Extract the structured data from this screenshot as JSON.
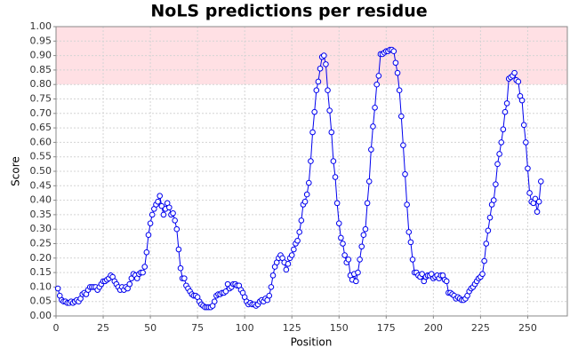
{
  "chart_data": {
    "type": "line",
    "title": "NoLS predictions per residue",
    "x_label": "Position",
    "y_label": "Score",
    "xlim": [
      0,
      271
    ],
    "ylim": [
      0,
      1
    ],
    "xticks": [
      0,
      25,
      50,
      75,
      100,
      125,
      150,
      175,
      200,
      225,
      250
    ],
    "yticks": [
      {
        "value": 0,
        "label": "0.00"
      },
      {
        "value": 0.05,
        "label": "0.05"
      },
      {
        "value": 0.1,
        "label": "0.10"
      },
      {
        "value": 0.15,
        "label": "0.15"
      },
      {
        "value": 0.2,
        "label": "0.20"
      },
      {
        "value": 0.25,
        "label": "0.25"
      },
      {
        "value": 0.3,
        "label": "0.30"
      },
      {
        "value": 0.35,
        "label": "0.35"
      },
      {
        "value": 0.4,
        "label": "0.40"
      },
      {
        "value": 0.45,
        "label": "0.45"
      },
      {
        "value": 0.5,
        "label": "0.50"
      },
      {
        "value": 0.55,
        "label": "0.55"
      },
      {
        "value": 0.6,
        "label": "0.60"
      },
      {
        "value": 0.65,
        "label": "0.65"
      },
      {
        "value": 0.7,
        "label": "0.70"
      },
      {
        "value": 0.75,
        "label": "0.75"
      },
      {
        "value": 0.8,
        "label": "0.80"
      },
      {
        "value": 0.85,
        "label": "0.85"
      },
      {
        "value": 0.9,
        "label": "0.90"
      },
      {
        "value": 0.95,
        "label": "0.95"
      },
      {
        "value": 1,
        "label": "1.00"
      }
    ],
    "grid": true,
    "highlight_range": [
      0.8,
      1
    ],
    "highlight_color": "#ffe0e4",
    "color": "#0000ee",
    "x": [
      1,
      2,
      3,
      4,
      5,
      6,
      7,
      8,
      9,
      10,
      11,
      12,
      13,
      14,
      15,
      16,
      17,
      18,
      19,
      20,
      21,
      22,
      23,
      24,
      25,
      26,
      27,
      28,
      29,
      30,
      31,
      32,
      33,
      34,
      35,
      36,
      37,
      38,
      39,
      40,
      41,
      42,
      43,
      44,
      45,
      46,
      47,
      48,
      49,
      50,
      51,
      52,
      53,
      54,
      55,
      56,
      57,
      58,
      59,
      60,
      61,
      62,
      63,
      64,
      65,
      66,
      67,
      68,
      69,
      70,
      71,
      72,
      73,
      74,
      75,
      76,
      77,
      78,
      79,
      80,
      81,
      82,
      83,
      84,
      85,
      86,
      87,
      88,
      89,
      90,
      91,
      92,
      93,
      94,
      95,
      96,
      97,
      98,
      99,
      100,
      101,
      102,
      103,
      104,
      105,
      106,
      107,
      108,
      109,
      110,
      111,
      112,
      113,
      114,
      115,
      116,
      117,
      118,
      119,
      120,
      121,
      122,
      123,
      124,
      125,
      126,
      127,
      128,
      129,
      130,
      131,
      132,
      133,
      134,
      135,
      136,
      137,
      138,
      139,
      140,
      141,
      142,
      143,
      144,
      145,
      146,
      147,
      148,
      149,
      150,
      151,
      152,
      153,
      154,
      155,
      156,
      157,
      158,
      159,
      160,
      161,
      162,
      163,
      164,
      165,
      166,
      167,
      168,
      169,
      170,
      171,
      172,
      173,
      174,
      175,
      176,
      177,
      178,
      179,
      180,
      181,
      182,
      183,
      184,
      185,
      186,
      187,
      188,
      189,
      190,
      191,
      192,
      193,
      194,
      195,
      196,
      197,
      198,
      199,
      200,
      201,
      202,
      203,
      204,
      205,
      206,
      207,
      208,
      209,
      210,
      211,
      212,
      213,
      214,
      215,
      216,
      217,
      218,
      219,
      220,
      221,
      222,
      223,
      224,
      225,
      226,
      227,
      228,
      229,
      230,
      231,
      232,
      233,
      234,
      235,
      236,
      237,
      238,
      239,
      240,
      241,
      242,
      243,
      244,
      245,
      246,
      247,
      248,
      249,
      250,
      251,
      252,
      253,
      254,
      255,
      256,
      257
    ],
    "values": [
      0.095,
      0.07,
      0.055,
      0.05,
      0.05,
      0.045,
      0.045,
      0.05,
      0.045,
      0.05,
      0.055,
      0.05,
      0.06,
      0.075,
      0.08,
      0.075,
      0.09,
      0.1,
      0.1,
      0.1,
      0.1,
      0.09,
      0.1,
      0.11,
      0.12,
      0.12,
      0.125,
      0.13,
      0.14,
      0.135,
      0.12,
      0.11,
      0.1,
      0.09,
      0.1,
      0.09,
      0.1,
      0.095,
      0.11,
      0.13,
      0.145,
      0.14,
      0.13,
      0.145,
      0.15,
      0.15,
      0.17,
      0.22,
      0.28,
      0.32,
      0.35,
      0.37,
      0.385,
      0.395,
      0.415,
      0.38,
      0.35,
      0.37,
      0.39,
      0.375,
      0.35,
      0.355,
      0.33,
      0.3,
      0.23,
      0.165,
      0.13,
      0.13,
      0.105,
      0.095,
      0.085,
      0.075,
      0.07,
      0.07,
      0.065,
      0.05,
      0.04,
      0.035,
      0.03,
      0.03,
      0.03,
      0.03,
      0.035,
      0.05,
      0.07,
      0.075,
      0.075,
      0.08,
      0.08,
      0.085,
      0.11,
      0.095,
      0.1,
      0.11,
      0.11,
      0.105,
      0.105,
      0.09,
      0.08,
      0.065,
      0.05,
      0.04,
      0.045,
      0.04,
      0.04,
      0.035,
      0.04,
      0.05,
      0.055,
      0.05,
      0.06,
      0.055,
      0.07,
      0.1,
      0.14,
      0.17,
      0.185,
      0.2,
      0.21,
      0.2,
      0.185,
      0.16,
      0.18,
      0.2,
      0.21,
      0.23,
      0.25,
      0.26,
      0.29,
      0.33,
      0.385,
      0.395,
      0.42,
      0.46,
      0.535,
      0.635,
      0.705,
      0.78,
      0.81,
      0.855,
      0.895,
      0.9,
      0.87,
      0.78,
      0.71,
      0.635,
      0.535,
      0.48,
      0.39,
      0.32,
      0.27,
      0.25,
      0.21,
      0.185,
      0.195,
      0.14,
      0.125,
      0.145,
      0.12,
      0.15,
      0.195,
      0.24,
      0.28,
      0.3,
      0.39,
      0.465,
      0.575,
      0.655,
      0.72,
      0.8,
      0.83,
      0.905,
      0.905,
      0.91,
      0.915,
      0.915,
      0.92,
      0.92,
      0.915,
      0.875,
      0.84,
      0.78,
      0.69,
      0.59,
      0.49,
      0.385,
      0.29,
      0.255,
      0.195,
      0.15,
      0.15,
      0.14,
      0.135,
      0.145,
      0.12,
      0.135,
      0.14,
      0.14,
      0.145,
      0.13,
      0.135,
      0.14,
      0.13,
      0.14,
      0.14,
      0.125,
      0.12,
      0.08,
      0.08,
      0.075,
      0.07,
      0.06,
      0.065,
      0.06,
      0.055,
      0.055,
      0.06,
      0.07,
      0.085,
      0.095,
      0.1,
      0.11,
      0.12,
      0.13,
      0.135,
      0.145,
      0.19,
      0.25,
      0.295,
      0.34,
      0.385,
      0.4,
      0.455,
      0.525,
      0.56,
      0.6,
      0.645,
      0.705,
      0.735,
      0.82,
      0.825,
      0.83,
      0.84,
      0.815,
      0.81,
      0.76,
      0.745,
      0.66,
      0.6,
      0.51,
      0.425,
      0.395,
      0.39,
      0.405,
      0.36,
      0.395,
      0.465
    ]
  }
}
